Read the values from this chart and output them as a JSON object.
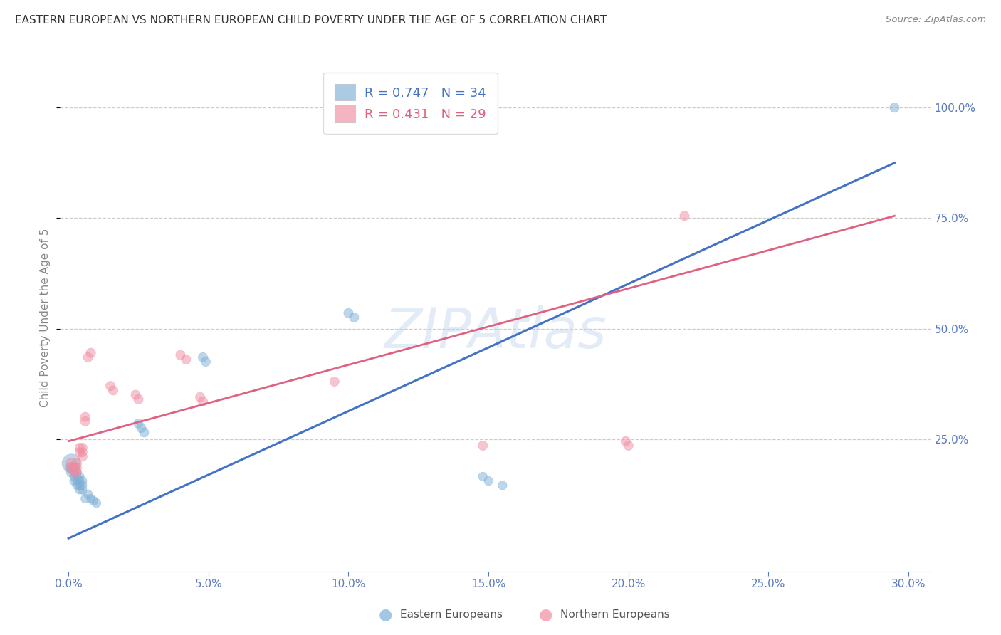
{
  "title": "EASTERN EUROPEAN VS NORTHERN EUROPEAN CHILD POVERTY UNDER THE AGE OF 5 CORRELATION CHART",
  "source": "Source: ZipAtlas.com",
  "ylabel": "Child Poverty Under the Age of 5",
  "watermark": "ZIPAtlas",
  "xlim": [
    -0.003,
    0.308
  ],
  "ylim": [
    -0.05,
    1.1
  ],
  "xtick_positions": [
    0.0,
    0.05,
    0.1,
    0.15,
    0.2,
    0.25,
    0.3
  ],
  "xtick_labels": [
    "0.0%",
    "5.0%",
    "10.0%",
    "15.0%",
    "20.0%",
    "25.0%",
    "30.0%"
  ],
  "ytick_positions": [
    0.25,
    0.5,
    0.75,
    1.0
  ],
  "ytick_labels": [
    "25.0%",
    "50.0%",
    "75.0%",
    "100.0%"
  ],
  "blue_R": 0.747,
  "blue_N": 34,
  "pink_R": 0.431,
  "pink_N": 29,
  "blue_color": "#7eafd6",
  "pink_color": "#f08ca0",
  "blue_line_color": "#4472c4",
  "pink_line_color": "#e06080",
  "grid_color": "#cccccc",
  "axis_label_color": "#5a7abf",
  "background_color": "#ffffff",
  "blue_scatter_x": [
    0.001,
    0.001,
    0.001,
    0.002,
    0.002,
    0.002,
    0.002,
    0.003,
    0.003,
    0.003,
    0.003,
    0.004,
    0.004,
    0.004,
    0.004,
    0.005,
    0.005,
    0.005,
    0.006,
    0.007,
    0.008,
    0.009,
    0.01,
    0.025,
    0.026,
    0.027,
    0.048,
    0.049,
    0.1,
    0.102,
    0.148,
    0.15,
    0.155,
    0.295
  ],
  "blue_scatter_y": [
    0.195,
    0.185,
    0.175,
    0.185,
    0.175,
    0.165,
    0.155,
    0.175,
    0.165,
    0.155,
    0.145,
    0.165,
    0.155,
    0.145,
    0.135,
    0.155,
    0.145,
    0.135,
    0.115,
    0.125,
    0.115,
    0.11,
    0.105,
    0.285,
    0.275,
    0.265,
    0.435,
    0.425,
    0.535,
    0.525,
    0.165,
    0.155,
    0.145,
    1.0
  ],
  "blue_scatter_size": [
    350,
    120,
    100,
    100,
    90,
    80,
    80,
    80,
    80,
    80,
    80,
    80,
    80,
    80,
    80,
    80,
    80,
    80,
    80,
    80,
    80,
    80,
    80,
    90,
    90,
    90,
    90,
    90,
    90,
    90,
    80,
    80,
    80,
    90
  ],
  "pink_scatter_x": [
    0.001,
    0.001,
    0.002,
    0.002,
    0.003,
    0.003,
    0.003,
    0.004,
    0.004,
    0.005,
    0.005,
    0.005,
    0.006,
    0.006,
    0.007,
    0.008,
    0.015,
    0.016,
    0.024,
    0.025,
    0.04,
    0.042,
    0.047,
    0.048,
    0.095,
    0.148,
    0.199,
    0.2,
    0.22
  ],
  "pink_scatter_y": [
    0.195,
    0.185,
    0.185,
    0.175,
    0.195,
    0.185,
    0.175,
    0.23,
    0.22,
    0.23,
    0.22,
    0.21,
    0.3,
    0.29,
    0.435,
    0.445,
    0.37,
    0.36,
    0.35,
    0.34,
    0.44,
    0.43,
    0.345,
    0.335,
    0.38,
    0.235,
    0.245,
    0.235,
    0.755
  ],
  "pink_scatter_size": [
    120,
    100,
    90,
    90,
    90,
    90,
    90,
    90,
    90,
    90,
    90,
    90,
    90,
    90,
    90,
    90,
    90,
    90,
    90,
    90,
    90,
    90,
    90,
    90,
    90,
    90,
    90,
    90,
    90
  ],
  "blue_line_x": [
    0.0,
    0.295
  ],
  "blue_line_y": [
    0.025,
    0.875
  ],
  "pink_line_x": [
    0.0,
    0.295
  ],
  "pink_line_y": [
    0.245,
    0.755
  ]
}
